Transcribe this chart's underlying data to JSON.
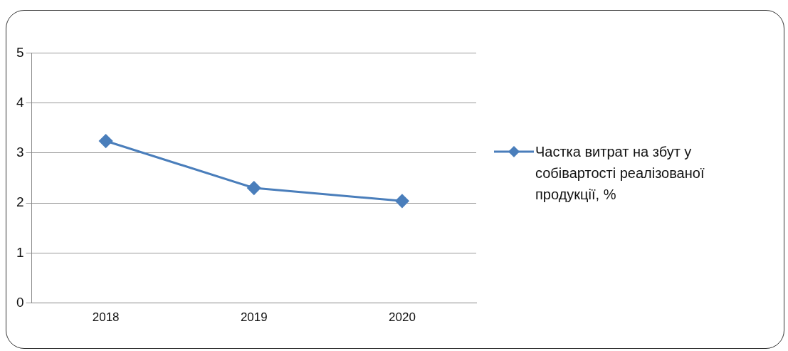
{
  "chart_data": {
    "type": "line",
    "categories": [
      "2018",
      "2019",
      "2020"
    ],
    "series": [
      {
        "name": "Частка витрат на збут  у собівартості реалізованої продукції, %",
        "color": "#4a7ebb",
        "values": [
          3.24,
          2.3,
          2.04
        ]
      }
    ],
    "ylim": [
      0,
      5
    ],
    "yticks": [
      0,
      1,
      2,
      3,
      4,
      5
    ],
    "grid": "y",
    "legend": "right",
    "marker": "diamond",
    "line_style": "solid"
  }
}
